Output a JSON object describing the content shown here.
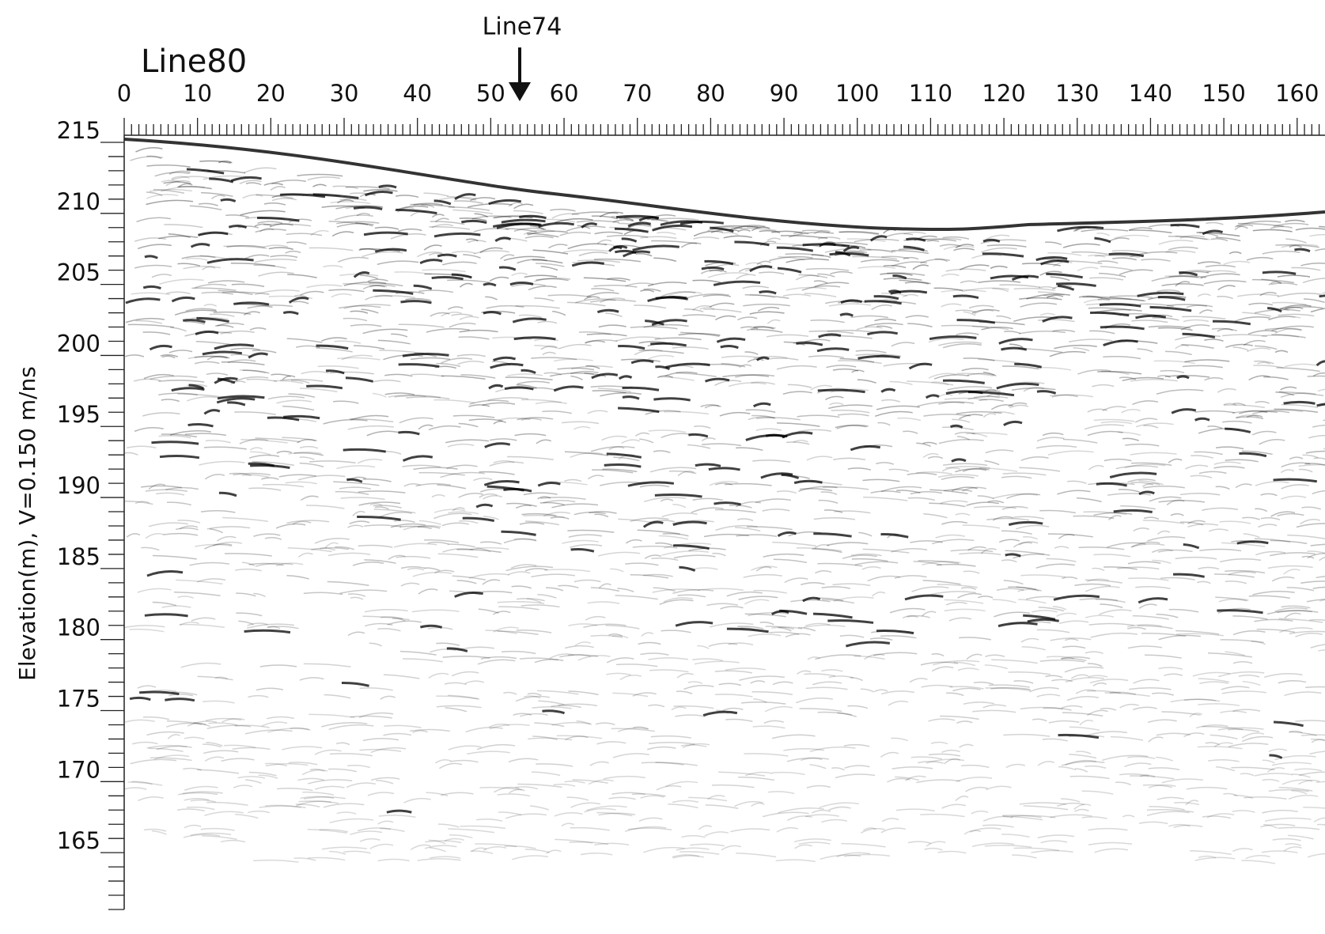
{
  "chart_data": {
    "type": "radargram",
    "title": "Line80",
    "annotation": "Line74",
    "y_label": "Elevation(m),  V=0.150 m/ns",
    "xlim": [
      0,
      163.8
    ],
    "xticks": [
      0,
      10,
      20,
      30,
      40,
      50,
      60,
      70,
      80,
      90,
      100,
      110,
      120,
      130,
      140,
      150,
      160
    ],
    "xminorticks": [
      1,
      2,
      3,
      4,
      5,
      6,
      7,
      8,
      9,
      11,
      12,
      13,
      14,
      15,
      16,
      17,
      18,
      19,
      21,
      22,
      23,
      24,
      25,
      26,
      27,
      28,
      29,
      31,
      32,
      33,
      34,
      35,
      36,
      37,
      38,
      39,
      41,
      42,
      43,
      44,
      45,
      46,
      47,
      48,
      49,
      51,
      52,
      53,
      54,
      55,
      56,
      57,
      58,
      59,
      61,
      62,
      63,
      64,
      65,
      66,
      67,
      68,
      69,
      71,
      72,
      73,
      74,
      75,
      76,
      77,
      78,
      79,
      81,
      82,
      83,
      84,
      85,
      86,
      87,
      88,
      89,
      91,
      92,
      93,
      94,
      95,
      96,
      97,
      98,
      99,
      101,
      102,
      103,
      104,
      105,
      106,
      107,
      108,
      109,
      111,
      112,
      113,
      114,
      115,
      116,
      117,
      118,
      119,
      121,
      122,
      123,
      124,
      125,
      126,
      127,
      128,
      129,
      131,
      132,
      133,
      134,
      135,
      136,
      137,
      138,
      139,
      141,
      142,
      143,
      144,
      145,
      146,
      147,
      148,
      149,
      151,
      152,
      153,
      154,
      155,
      156,
      157,
      158,
      159,
      161,
      162,
      163
    ],
    "ylim": [
      161,
      215.5
    ],
    "yticks": [
      165,
      170,
      175,
      180,
      185,
      190,
      195,
      200,
      205,
      210,
      215
    ],
    "yminorticks": [
      161,
      162,
      163,
      164,
      166,
      167,
      168,
      169,
      171,
      172,
      173,
      174,
      176,
      177,
      178,
      179,
      181,
      182,
      183,
      184,
      186,
      187,
      188,
      189,
      191,
      192,
      193,
      194,
      196,
      197,
      198,
      199,
      201,
      202,
      203,
      204,
      206,
      207,
      208,
      209,
      211,
      212,
      213,
      214
    ]
  }
}
